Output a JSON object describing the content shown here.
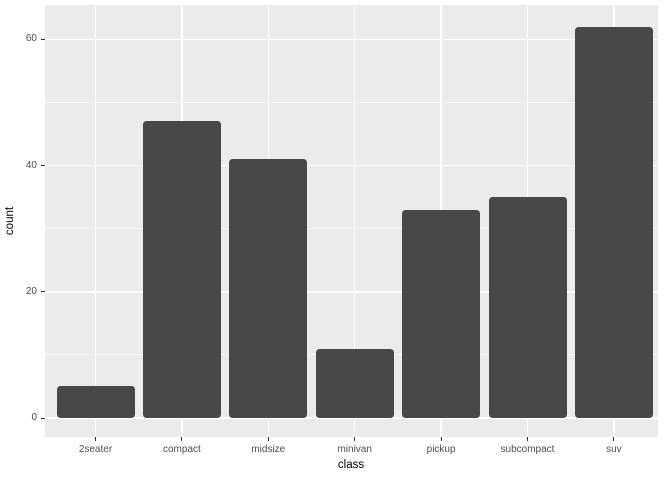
{
  "chart_data": {
    "type": "bar",
    "title": "",
    "xlabel": "class",
    "ylabel": "count",
    "categories": [
      "2seater",
      "compact",
      "midsize",
      "minivan",
      "pickup",
      "subcompact",
      "suv"
    ],
    "values": [
      5,
      47,
      41,
      11,
      33,
      35,
      62
    ],
    "y_ticks": [
      0,
      20,
      40,
      60
    ],
    "y_minor_ticks": [
      10,
      30,
      50
    ],
    "ylim": [
      -3.1,
      65.1
    ],
    "grid": "major and minor horizontal white lines, vertical white line at each category center, drawn under bars",
    "legend": "none",
    "colors": {
      "bar_fill": "#484848",
      "panel_background": "#EBEBEB",
      "gridline": "#FFFFFF",
      "tick_label": "#4D4D4D",
      "axis_title": "#000000",
      "tick_mark": "#333333",
      "figure_background": "#FFFFFF"
    }
  }
}
